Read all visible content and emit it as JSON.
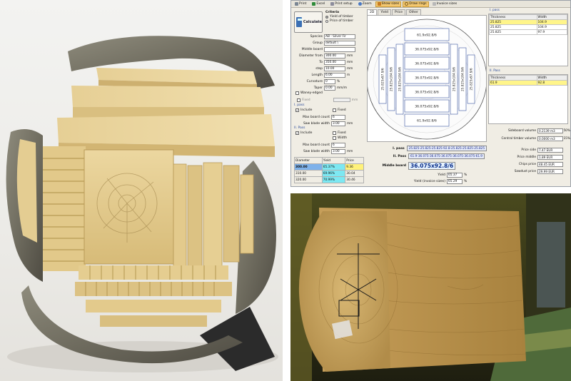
{
  "toolbar": {
    "items": [
      {
        "label": "Print",
        "icon": "printer-icon",
        "active": false
      },
      {
        "label": "Excel",
        "icon": "excel-icon",
        "active": false
      },
      {
        "label": "Print setup",
        "icon": "print-setup-icon",
        "active": false
      },
      {
        "label": "Zoom",
        "icon": "zoom-icon",
        "active": false
      },
      {
        "label": "Show sizes",
        "icon": "ruler-icon",
        "active": true
      },
      {
        "label": "Draw rings",
        "icon": "rings-icon",
        "active": true
      },
      {
        "label": "Invoice sizes",
        "icon": "invoice-icon",
        "active": false
      }
    ]
  },
  "left_panel": {
    "calculate_label": "Calculate",
    "criteria_title": "Criteria",
    "criteria_options": [
      "Yield of timber",
      "Price of timber"
    ],
    "fields": [
      {
        "label": "Species",
        "value": "AB - Silver Fir",
        "unit": ""
      },
      {
        "label": "Group",
        "value": "default \\",
        "unit": ""
      },
      {
        "label": "Middle board",
        "value": "",
        "unit": ""
      },
      {
        "label": "Diameter from",
        "value": "300.00",
        "unit": "mm"
      },
      {
        "label": "To",
        "value": "350.00",
        "unit": "mm"
      },
      {
        "label": "step",
        "value": "10.00",
        "unit": "mm"
      },
      {
        "label": "Length",
        "value": "6.00",
        "unit": "m"
      },
      {
        "label": "Curvature",
        "value": "0",
        "unit": "%"
      },
      {
        "label": "Taper",
        "value": "0.00",
        "unit": "mm/m"
      }
    ],
    "waney_edged": "Waney-edged",
    "fixed_label": "Fixed",
    "fixed_unit": "mm",
    "pass1": {
      "title": "I. pass",
      "include": "Include",
      "fixed": "Fixed",
      "max_board_count_label": "Max board count",
      "max_board_count": "6",
      "saw_blade_label": "Saw blade width",
      "saw_blade": "3.00",
      "unit": "mm"
    },
    "pass2": {
      "title": "II. Pass",
      "include": "Include",
      "fixed": "Fixed",
      "width": "Width",
      "max_board_count_label": "Max board count",
      "max_board_count": "6",
      "saw_blade_label": "Saw blade width",
      "saw_blade": "3.00",
      "unit": "mm"
    },
    "yield_table": {
      "headers": [
        "Diameter",
        "Yield",
        "Price"
      ],
      "rows": [
        [
          "300.00",
          "65.37%",
          "9.36"
        ],
        [
          "310.00",
          "69.96%",
          "30.04"
        ],
        [
          "320.00",
          "70.99%",
          "30.46"
        ]
      ]
    }
  },
  "center": {
    "tabs": [
      "2D",
      "Yield",
      "Price",
      "Other"
    ],
    "active_tab": "2D",
    "horizontal_boards": [
      "61.9x92.8/6",
      "36.075x92.8/6",
      "36.075x92.8/6",
      "36.075x92.8/6",
      "36.075x92.8/6",
      "36.075x92.8/6",
      "61.9x92.8/6"
    ],
    "vertical_left": [
      "25.825x97.9/6",
      "25.825x104.9/6",
      "25.825x104.9/6"
    ],
    "vertical_right": [
      "25.825x104.9/6",
      "25.825x104.9/6",
      "25.825x97.9/6"
    ],
    "pass1_label": "I. pass",
    "pass1_value": "25.825-25.825-25.825-92.8-25.825-25.825-25.825",
    "pass2_label": "II. Pass",
    "pass2_value": "61.9-36.075-36.075-36.075-36.075-36.075-61.9",
    "middle_label": "Middle board",
    "middle_value": "36.075x92.8/6",
    "yield_label": "Yield",
    "yield_value": "65.37",
    "yield_invoice_label": "Yield (invoice sizes)",
    "yield_invoice_value": "65.29",
    "pct": "%"
  },
  "right": {
    "pass1_caption": "I. pass",
    "table1": {
      "headers": [
        "Thickness",
        "Width"
      ],
      "rows": [
        [
          "25.825",
          "104.9"
        ],
        [
          "25.825",
          "104.9"
        ],
        [
          "25.825",
          "97.9"
        ]
      ]
    },
    "pass2_caption": "II. Pass",
    "table2": {
      "headers": [
        "Thickness",
        "Width"
      ],
      "rows": [
        [
          "61.9",
          "92.8"
        ]
      ]
    },
    "values": [
      {
        "label": "Sideboard volume",
        "value": "0.2139 m3",
        "pct": "50%"
      },
      {
        "label": "Central timber volume",
        "value": "0.0000 m3",
        "pct": "15%"
      },
      {
        "label": "Price side",
        "value": "7.47 EUR",
        "pct": ""
      },
      {
        "label": "Price middle",
        "value": "1.89 EUR",
        "pct": ""
      },
      {
        "label": "Chips price",
        "value": "48.45 EUR",
        "pct": ""
      },
      {
        "label": "Sawdust price",
        "value": "29.99 EUR",
        "pct": ""
      }
    ]
  },
  "colors": {
    "wood_light": "#e3cb8f",
    "wood_mid": "#cfb06a",
    "bark": "#7d7a6c",
    "toolbar_active": "#f4c870",
    "selected_row": "#7fb2ea",
    "highlight_yellow": "#fff27a",
    "highlight_cyan": "#7de8f2"
  }
}
